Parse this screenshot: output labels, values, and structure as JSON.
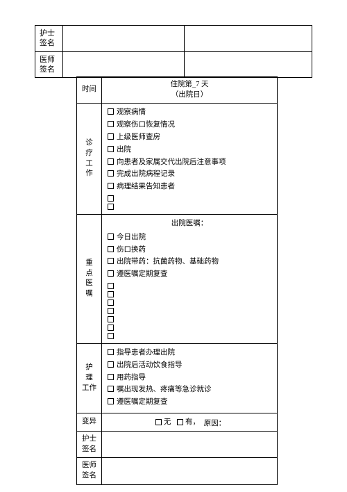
{
  "topTable": {
    "row1Label": "护士\n签名",
    "row2Label": "医师\n签名"
  },
  "mainTable": {
    "timeLabel": "时间",
    "headerLine1": "住院第_7 天",
    "headerLine2": "（出院日）",
    "diagnosis": {
      "label": "诊\n疗\n工\n作",
      "items": [
        "观察病情",
        "观察伤口恢复情况",
        "上级医师查房",
        "出院",
        "向患者及家属交代出院后注意事项",
        "完成出院病程记录",
        "病理结果告知患者",
        "",
        ""
      ]
    },
    "orders": {
      "label": "重\n点\n医\n嘱",
      "header": "出院医嘱：",
      "items": [
        "今日出院",
        "伤口换药",
        "出院带药：抗菌药物、基础药物",
        "遵医嘱定期复查",
        "",
        "",
        "",
        "",
        "",
        "",
        ""
      ]
    },
    "nursing": {
      "label": "护 理\n工作",
      "items": [
        "指导患者办理出院",
        "出院后活动饮食指导",
        "用药指导",
        "嘱出现发热、疼痛等急诊就诊",
        "遵医嘱定期复查"
      ]
    },
    "variance": {
      "label": "变异",
      "option1": "无",
      "option2": "有，",
      "reasonLabel": "原因："
    },
    "nurseSig": "护士\n签名",
    "doctorSig": "医师\n签名"
  }
}
